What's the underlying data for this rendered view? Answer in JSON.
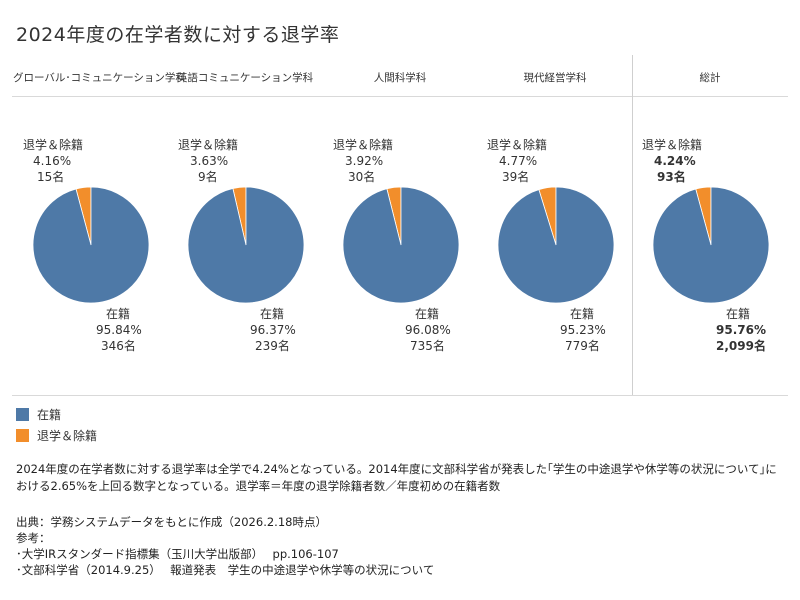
{
  "title": "2024年度の在学者数に対する退学率",
  "colors": {
    "enrolled": "#4e79a7",
    "withdrawn": "#f28e2b"
  },
  "chart_data": {
    "type": "pie",
    "title": "2024年度の在学者数に対する退学率",
    "categories": [
      "在籍",
      "退学＆除籍"
    ],
    "charts": [
      {
        "name": "グローバル･コミュニケーション学科",
        "values": [
          95.84,
          4.16
        ],
        "counts": [
          346,
          15
        ],
        "labels": {
          "enrolled_pct": "95.84%",
          "enrolled_count": "346名",
          "withdrawn_pct": "4.16%",
          "withdrawn_count": "15名"
        }
      },
      {
        "name": "英語コミュニケーション学科",
        "values": [
          96.37,
          3.63
        ],
        "counts": [
          239,
          9
        ],
        "labels": {
          "enrolled_pct": "96.37%",
          "enrolled_count": "239名",
          "withdrawn_pct": "3.63%",
          "withdrawn_count": "9名"
        }
      },
      {
        "name": "人間科学科",
        "values": [
          96.08,
          3.92
        ],
        "counts": [
          735,
          30
        ],
        "labels": {
          "enrolled_pct": "96.08%",
          "enrolled_count": "735名",
          "withdrawn_pct": "3.92%",
          "withdrawn_count": "30名"
        }
      },
      {
        "name": "現代経営学科",
        "values": [
          95.23,
          4.77
        ],
        "counts": [
          779,
          39
        ],
        "labels": {
          "enrolled_pct": "95.23%",
          "enrolled_count": "779名",
          "withdrawn_pct": "4.77%",
          "withdrawn_count": "39名"
        }
      },
      {
        "name": "総計",
        "values": [
          95.76,
          4.24
        ],
        "counts": [
          2099,
          93
        ],
        "labels": {
          "enrolled_pct": "95.76%",
          "enrolled_count": "2,099名",
          "withdrawn_pct": "4.24%",
          "withdrawn_count": "93名"
        }
      }
    ]
  },
  "slice_labels": {
    "enrolled": "在籍",
    "withdrawn": "退学＆除籍"
  },
  "legend": [
    {
      "label": "在籍",
      "color": "#4e79a7"
    },
    {
      "label": "退学＆除籍",
      "color": "#f28e2b"
    }
  ],
  "description": "2024年度の在学者数に対する退学率は全学で4.24%となっている。2014年度に文部科学省が発表した｢学生の中途退学や休学等の状況について｣における2.65%を上回る数字となっている。退学率＝年度の退学除籍者数／年度初めの在籍者数",
  "sources": {
    "line1": "出典：学務システムデータをもとに作成（2026.2.18時点）",
    "line2": "参考：",
    "line3": "･大学IRスタンダード指標集（玉川大学出版部）　 pp.106-107",
    "line4": "･文部科学省（2014.9.25）　 報道発表　学生の中途退学や休学等の状況について"
  }
}
